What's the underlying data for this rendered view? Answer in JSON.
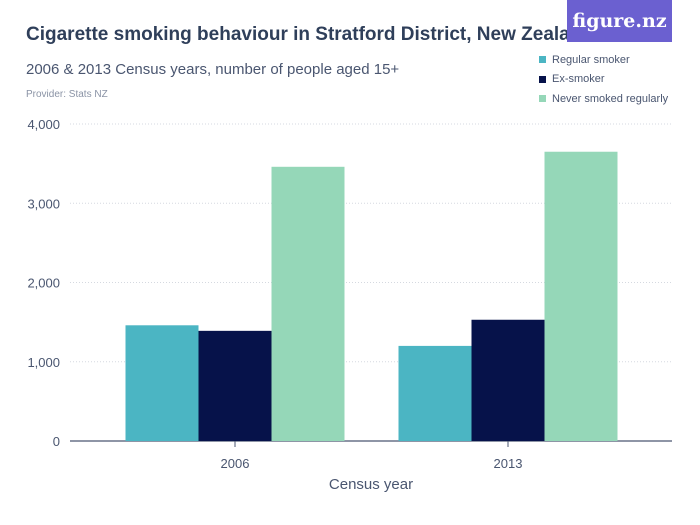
{
  "header": {
    "title": "Cigarette smoking behaviour in Stratford District, New Zealand",
    "subtitle": "2006 & 2013 Census years, number of people aged 15+",
    "provider": "Provider: Stats NZ",
    "logo": "figure.nz"
  },
  "chart_data": {
    "type": "bar",
    "title": "Cigarette smoking behaviour in Stratford District, New Zealand",
    "subtitle": "2006 & 2013 Census years, number of people aged 15+",
    "xlabel": "Census year",
    "ylabel": "",
    "categories": [
      "2006",
      "2013"
    ],
    "ylim": [
      0,
      4000
    ],
    "yticks": [
      0,
      1000,
      2000,
      3000,
      4000
    ],
    "ytick_labels": [
      "0",
      "1,000",
      "2,000",
      "3,000",
      "4,000"
    ],
    "grid": true,
    "legend_position": "top-right",
    "series": [
      {
        "name": "Regular smoker",
        "color": "#4bb5c3",
        "values": [
          1460,
          1200
        ]
      },
      {
        "name": "Ex-smoker",
        "color": "#06124a",
        "values": [
          1390,
          1530
        ]
      },
      {
        "name": "Never smoked regularly",
        "color": "#95d7b8",
        "values": [
          3460,
          3650
        ]
      }
    ]
  }
}
